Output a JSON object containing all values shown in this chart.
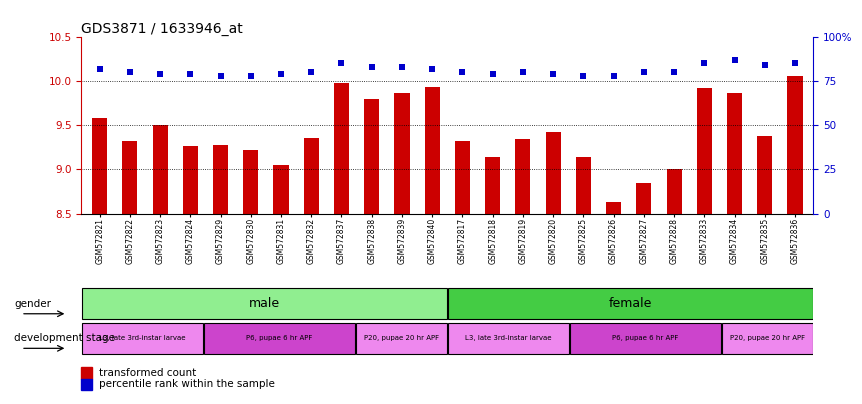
{
  "title": "GDS3871 / 1633946_at",
  "samples": [
    "GSM572821",
    "GSM572822",
    "GSM572823",
    "GSM572824",
    "GSM572829",
    "GSM572830",
    "GSM572831",
    "GSM572832",
    "GSM572837",
    "GSM572838",
    "GSM572839",
    "GSM572840",
    "GSM572817",
    "GSM572818",
    "GSM572819",
    "GSM572820",
    "GSM572825",
    "GSM572826",
    "GSM572827",
    "GSM572828",
    "GSM572833",
    "GSM572834",
    "GSM572835",
    "GSM572836"
  ],
  "bar_values": [
    9.58,
    9.32,
    9.5,
    9.26,
    9.28,
    9.22,
    9.05,
    9.35,
    9.98,
    9.8,
    9.86,
    9.93,
    9.32,
    9.14,
    9.34,
    9.42,
    9.14,
    8.63,
    8.85,
    9.0,
    9.92,
    9.86,
    9.38,
    10.06
  ],
  "percentile_values": [
    82,
    80,
    79,
    79,
    78,
    78,
    79,
    80,
    85,
    83,
    83,
    82,
    80,
    79,
    80,
    79,
    78,
    78,
    80,
    80,
    85,
    87,
    84,
    85
  ],
  "bar_color": "#cc0000",
  "dot_color": "#0000cc",
  "ylim_left": [
    8.5,
    10.5
  ],
  "ylim_right": [
    0,
    100
  ],
  "yticks_left": [
    8.5,
    9.0,
    9.5,
    10.0,
    10.5
  ],
  "yticks_right": [
    0,
    25,
    50,
    75,
    100
  ],
  "ytick_labels_right": [
    "0",
    "25",
    "50",
    "75",
    "100%"
  ],
  "grid_values": [
    9.0,
    9.5,
    10.0
  ],
  "gender_spans_male": [
    0,
    12
  ],
  "gender_spans_female": [
    12,
    24
  ],
  "gender_color": "#90ee90",
  "gender_color_female": "#44cc44",
  "dev_stage_data": [
    {
      "start": 0,
      "end": 4,
      "label": "L3, late 3rd-instar larvae",
      "color": "#ee88ee"
    },
    {
      "start": 4,
      "end": 9,
      "label": "P6, pupae 6 hr APF",
      "color": "#cc44cc"
    },
    {
      "start": 9,
      "end": 12,
      "label": "P20, pupae 20 hr APF",
      "color": "#ee88ee"
    },
    {
      "start": 12,
      "end": 16,
      "label": "L3, late 3rd-instar larvae",
      "color": "#ee88ee"
    },
    {
      "start": 16,
      "end": 21,
      "label": "P6, pupae 6 hr APF",
      "color": "#cc44cc"
    },
    {
      "start": 21,
      "end": 24,
      "label": "P20, pupae 20 hr APF",
      "color": "#ee88ee"
    }
  ],
  "legend_items": [
    "transformed count",
    "percentile rank within the sample"
  ],
  "background_color": "#ffffff"
}
